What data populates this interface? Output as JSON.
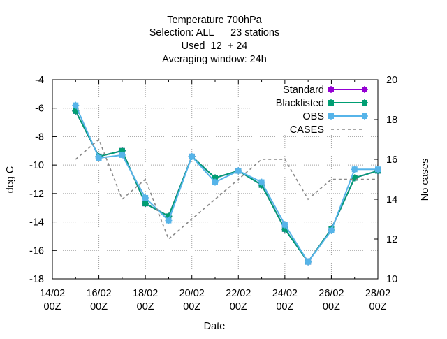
{
  "chart_data": {
    "type": "line",
    "title_lines": [
      "Temperature 700hPa",
      "Selection: ALL      23 stations",
      "Used  12  + 24",
      "Averaging window: 24h"
    ],
    "xlabel": "Date",
    "ylabel": "deg C",
    "y2label": "No cases",
    "x_range": [
      14,
      28
    ],
    "ylim": [
      -18,
      -4
    ],
    "y2lim": [
      10,
      20
    ],
    "grid": true,
    "legend_position": "top-right",
    "x_ticks": [
      {
        "x": 14,
        "line1": "14/02",
        "line2": "00Z"
      },
      {
        "x": 16,
        "line1": "16/02",
        "line2": "00Z"
      },
      {
        "x": 18,
        "line1": "18/02",
        "line2": "00Z"
      },
      {
        "x": 20,
        "line1": "20/02",
        "line2": "00Z"
      },
      {
        "x": 22,
        "line1": "22/02",
        "line2": "00Z"
      },
      {
        "x": 24,
        "line1": "24/02",
        "line2": "00Z"
      },
      {
        "x": 26,
        "line1": "26/02",
        "line2": "00Z"
      },
      {
        "x": 28,
        "line1": "28/02",
        "line2": "00Z"
      }
    ],
    "y_ticks": [
      -18,
      -16,
      -14,
      -12,
      -10,
      -8,
      -6,
      -4
    ],
    "y2_ticks": [
      10,
      12,
      14,
      16,
      18,
      20
    ],
    "x": [
      15,
      16,
      17,
      18,
      19,
      20,
      21,
      22,
      23,
      24,
      25,
      26,
      27,
      28
    ],
    "series": [
      {
        "name": "Standard",
        "axis": "y",
        "color": "#9400d3",
        "style": "line-points",
        "values": [
          -6.2,
          -9.4,
          -9.0,
          -12.7,
          -13.6,
          -9.4,
          -10.9,
          -10.4,
          -11.4,
          -14.5,
          -16.8,
          -14.5,
          -10.9,
          -10.4
        ]
      },
      {
        "name": "Blacklisted",
        "axis": "y",
        "color": "#009e73",
        "style": "line-points",
        "values": [
          -6.2,
          -9.4,
          -9.0,
          -12.7,
          -13.6,
          -9.4,
          -10.9,
          -10.4,
          -11.4,
          -14.5,
          -16.8,
          -14.5,
          -10.9,
          -10.4
        ]
      },
      {
        "name": "OBS",
        "axis": "y",
        "color": "#56b4e9",
        "style": "line-points",
        "values": [
          -5.8,
          -9.5,
          -9.3,
          -12.3,
          -13.9,
          -9.4,
          -11.2,
          -10.4,
          -11.2,
          -14.2,
          -16.8,
          -14.6,
          -10.3,
          -10.3
        ]
      },
      {
        "name": "CASES",
        "axis": "y2",
        "color": "#888888",
        "style": "dashed",
        "values": [
          16,
          17,
          14,
          15,
          12,
          13,
          14,
          15,
          16,
          16,
          14,
          15,
          15,
          15
        ]
      }
    ]
  }
}
